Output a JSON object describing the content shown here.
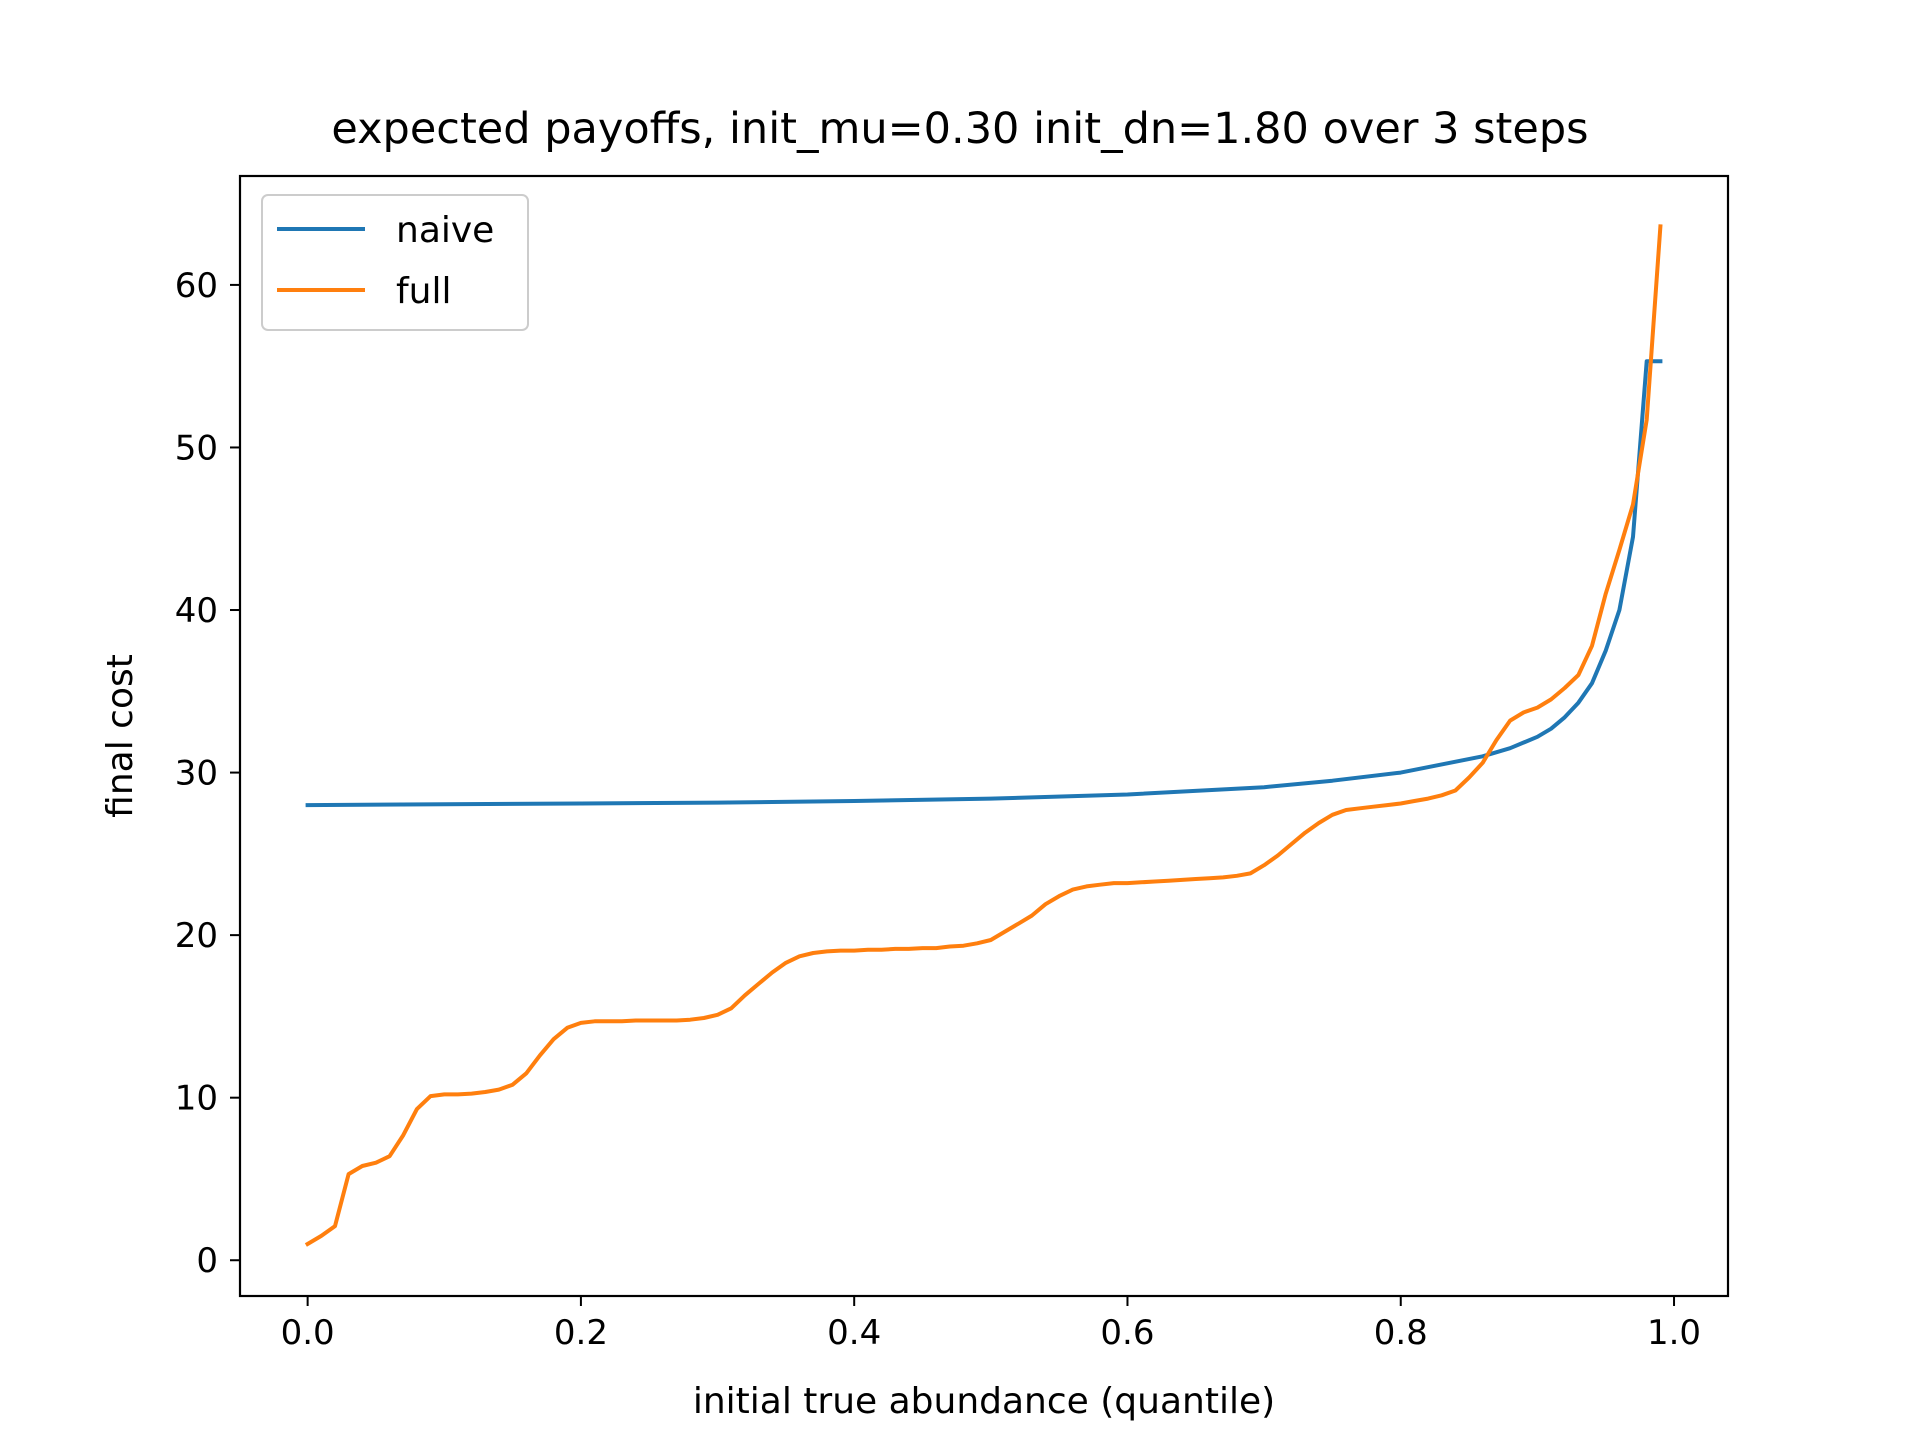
{
  "chart_data": {
    "type": "line",
    "title": "expected payoffs, init_mu=0.30 init_dn=1.80 over 3 steps",
    "xlabel": "initial true abundance (quantile)",
    "ylabel": "final cost",
    "xlim": [
      -0.0495,
      1.0395
    ],
    "ylim": [
      -2.2,
      66.7
    ],
    "xticks": [
      0.0,
      0.2,
      0.4,
      0.6,
      0.8,
      1.0
    ],
    "xtick_labels": [
      "0.0",
      "0.2",
      "0.4",
      "0.6",
      "0.8",
      "1.0"
    ],
    "yticks": [
      0,
      10,
      20,
      30,
      40,
      50,
      60
    ],
    "ytick_labels": [
      "0",
      "10",
      "20",
      "30",
      "40",
      "50",
      "60"
    ],
    "grid": false,
    "legend_position": "upper-left",
    "series": [
      {
        "name": "naive",
        "color": "#1f77b4",
        "x": [
          0.0,
          0.1,
          0.2,
          0.3,
          0.4,
          0.5,
          0.6,
          0.7,
          0.75,
          0.8,
          0.83,
          0.86,
          0.88,
          0.9,
          0.91,
          0.92,
          0.93,
          0.94,
          0.95,
          0.96,
          0.97,
          0.98,
          0.99
        ],
        "y": [
          28.0,
          28.05,
          28.1,
          28.15,
          28.25,
          28.4,
          28.65,
          29.1,
          29.5,
          30.0,
          30.5,
          31.0,
          31.5,
          32.2,
          32.7,
          33.4,
          34.3,
          35.5,
          37.5,
          40.0,
          44.5,
          55.3,
          55.3
        ]
      },
      {
        "name": "full",
        "color": "#ff7f0e",
        "x": [
          0.0,
          0.01,
          0.02,
          0.03,
          0.04,
          0.05,
          0.06,
          0.07,
          0.08,
          0.09,
          0.1,
          0.11,
          0.12,
          0.13,
          0.14,
          0.15,
          0.16,
          0.17,
          0.18,
          0.19,
          0.2,
          0.21,
          0.22,
          0.23,
          0.24,
          0.25,
          0.26,
          0.27,
          0.28,
          0.29,
          0.3,
          0.31,
          0.32,
          0.33,
          0.34,
          0.35,
          0.36,
          0.37,
          0.38,
          0.39,
          0.4,
          0.41,
          0.42,
          0.43,
          0.44,
          0.45,
          0.46,
          0.47,
          0.48,
          0.49,
          0.5,
          0.51,
          0.52,
          0.53,
          0.54,
          0.55,
          0.56,
          0.57,
          0.58,
          0.59,
          0.6,
          0.61,
          0.62,
          0.63,
          0.64,
          0.65,
          0.66,
          0.67,
          0.68,
          0.69,
          0.7,
          0.71,
          0.72,
          0.73,
          0.74,
          0.75,
          0.76,
          0.77,
          0.78,
          0.79,
          0.8,
          0.81,
          0.82,
          0.83,
          0.84,
          0.85,
          0.86,
          0.87,
          0.88,
          0.89,
          0.9,
          0.91,
          0.92,
          0.93,
          0.94,
          0.95,
          0.96,
          0.97,
          0.98,
          0.99
        ],
        "y": [
          1.0,
          1.5,
          2.1,
          5.3,
          5.8,
          6.0,
          6.4,
          7.7,
          9.3,
          10.1,
          10.2,
          10.2,
          10.25,
          10.35,
          10.5,
          10.8,
          11.5,
          12.6,
          13.6,
          14.3,
          14.6,
          14.7,
          14.7,
          14.7,
          14.75,
          14.75,
          14.75,
          14.75,
          14.8,
          14.9,
          15.1,
          15.5,
          16.3,
          17.0,
          17.7,
          18.3,
          18.7,
          18.9,
          19.0,
          19.05,
          19.05,
          19.1,
          19.1,
          19.15,
          19.15,
          19.2,
          19.2,
          19.3,
          19.35,
          19.5,
          19.7,
          20.2,
          20.7,
          21.2,
          21.9,
          22.4,
          22.8,
          23.0,
          23.1,
          23.2,
          23.2,
          23.25,
          23.3,
          23.35,
          23.4,
          23.45,
          23.5,
          23.55,
          23.65,
          23.8,
          24.3,
          24.9,
          25.6,
          26.3,
          26.9,
          27.4,
          27.7,
          27.8,
          27.9,
          28.0,
          28.1,
          28.25,
          28.4,
          28.6,
          28.9,
          29.7,
          30.6,
          32.0,
          33.2,
          33.7,
          34.0,
          34.5,
          35.2,
          36.0,
          37.8,
          41.0,
          43.7,
          46.5,
          51.7,
          63.6
        ]
      }
    ]
  }
}
